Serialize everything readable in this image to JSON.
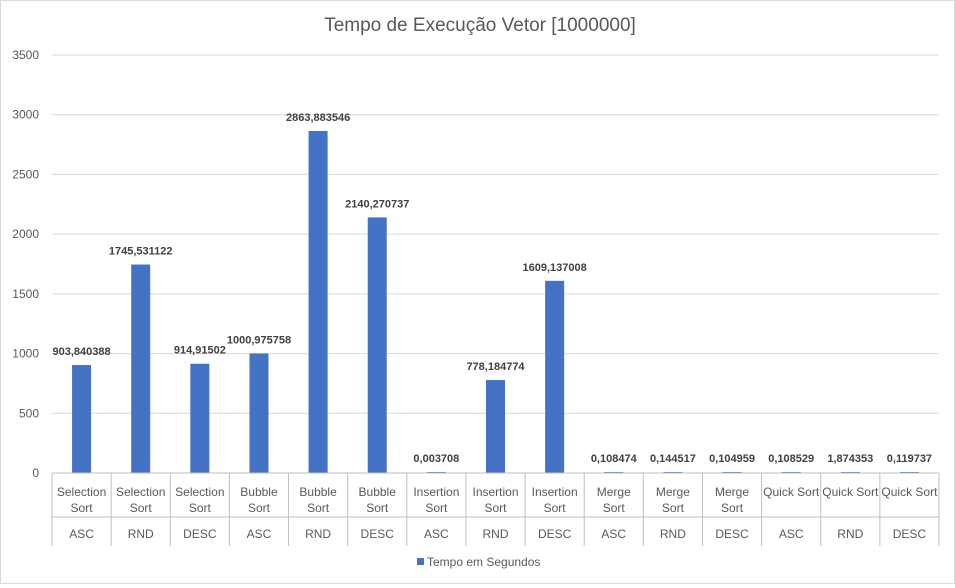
{
  "chart_data": {
    "type": "bar",
    "title": "Tempo de Execução Vetor [1000000]",
    "xlabel": "",
    "ylabel": "",
    "ylim": [
      0,
      3500
    ],
    "yticks": [
      0,
      500,
      1000,
      1500,
      2000,
      2500,
      3000,
      3500
    ],
    "grid": true,
    "legend_position": "bottom",
    "bar_color": "#4472C4",
    "categories": [
      {
        "algorithm": [
          "Selection",
          "Sort"
        ],
        "order": "ASC"
      },
      {
        "algorithm": [
          "Selection",
          "Sort"
        ],
        "order": "RND"
      },
      {
        "algorithm": [
          "Selection",
          "Sort"
        ],
        "order": "DESC"
      },
      {
        "algorithm": [
          "Bubble",
          "Sort"
        ],
        "order": "ASC"
      },
      {
        "algorithm": [
          "Bubble",
          "Sort"
        ],
        "order": "RND"
      },
      {
        "algorithm": [
          "Bubble",
          "Sort"
        ],
        "order": "DESC"
      },
      {
        "algorithm": [
          "Insertion",
          "Sort"
        ],
        "order": "ASC"
      },
      {
        "algorithm": [
          "Insertion",
          "Sort"
        ],
        "order": "RND"
      },
      {
        "algorithm": [
          "Insertion",
          "Sort"
        ],
        "order": "DESC"
      },
      {
        "algorithm": [
          "Merge",
          "Sort"
        ],
        "order": "ASC"
      },
      {
        "algorithm": [
          "Merge",
          "Sort"
        ],
        "order": "RND"
      },
      {
        "algorithm": [
          "Merge",
          "Sort"
        ],
        "order": "DESC"
      },
      {
        "algorithm": [
          "Quick Sort"
        ],
        "order": "ASC"
      },
      {
        "algorithm": [
          "Quick Sort"
        ],
        "order": "RND"
      },
      {
        "algorithm": [
          "Quick Sort"
        ],
        "order": "DESC"
      }
    ],
    "series": [
      {
        "name": "Tempo em Segundos",
        "values": [
          903.840388,
          1745.531122,
          914.91502,
          1000.975758,
          2863.883546,
          2140.270737,
          0.003708,
          778.184774,
          1609.137008,
          0.108474,
          0.144517,
          0.104959,
          0.108529,
          1.874353,
          0.119737
        ],
        "labels": [
          "903,840388",
          "1745,531122",
          "914,91502",
          "1000,975758",
          "2863,883546",
          "2140,270737",
          "0,003708",
          "778,184774",
          "1609,137008",
          "0,108474",
          "0,144517",
          "0,104959",
          "0,108529",
          "1,874353",
          "0,119737"
        ]
      }
    ]
  }
}
